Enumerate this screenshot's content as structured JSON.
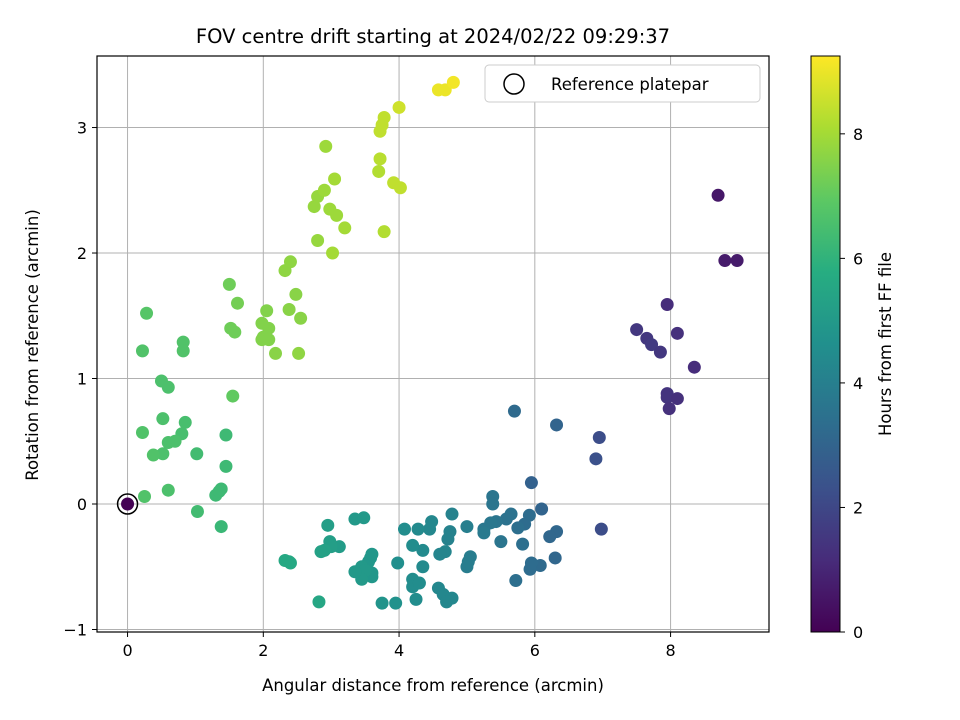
{
  "chart_data": {
    "type": "scatter",
    "title": "FOV centre drift starting at 2024/02/22 09:29:37",
    "xlabel": "Angular distance from reference (arcmin)",
    "ylabel": "Rotation from reference (arcmin)",
    "xlim": [
      -0.45,
      9.45
    ],
    "ylim": [
      -1.02,
      3.57
    ],
    "xticks": [
      0,
      2,
      4,
      6,
      8
    ],
    "yticks": [
      -1,
      0,
      1,
      2,
      3
    ],
    "grid": true,
    "colormap": "viridis",
    "colorbar": {
      "label": "Hours from first FF file",
      "min": 0,
      "max": 9.25,
      "ticks": [
        0,
        2,
        4,
        6,
        8
      ]
    },
    "legend": {
      "position": "top-right",
      "entries": [
        "Reference platepar"
      ]
    },
    "reference_point": {
      "x": 0,
      "y": 0
    },
    "points": [
      {
        "x": 8.7,
        "y": 2.46,
        "h": 0.6
      },
      {
        "x": 8.8,
        "y": 1.94,
        "h": 0.7
      },
      {
        "x": 8.98,
        "y": 1.94,
        "h": 0.7
      },
      {
        "x": 7.95,
        "y": 1.59,
        "h": 1.2
      },
      {
        "x": 8.1,
        "y": 1.36,
        "h": 1.3
      },
      {
        "x": 7.5,
        "y": 1.39,
        "h": 1.5
      },
      {
        "x": 7.65,
        "y": 1.32,
        "h": 1.5
      },
      {
        "x": 7.72,
        "y": 1.27,
        "h": 1.6
      },
      {
        "x": 7.85,
        "y": 1.21,
        "h": 1.5
      },
      {
        "x": 8.35,
        "y": 1.09,
        "h": 1.2
      },
      {
        "x": 7.95,
        "y": 0.88,
        "h": 1.4
      },
      {
        "x": 7.95,
        "y": 0.85,
        "h": 1.4
      },
      {
        "x": 8.1,
        "y": 0.84,
        "h": 1.3
      },
      {
        "x": 7.98,
        "y": 0.76,
        "h": 1.3
      },
      {
        "x": 6.95,
        "y": 0.53,
        "h": 2.2
      },
      {
        "x": 6.9,
        "y": 0.36,
        "h": 2.3
      },
      {
        "x": 6.98,
        "y": -0.2,
        "h": 2.2
      },
      {
        "x": 6.32,
        "y": 0.63,
        "h": 3.0
      },
      {
        "x": 5.7,
        "y": 0.74,
        "h": 3.2
      },
      {
        "x": 5.95,
        "y": 0.17,
        "h": 2.9
      },
      {
        "x": 6.1,
        "y": -0.04,
        "h": 3.0
      },
      {
        "x": 6.32,
        "y": -0.22,
        "h": 3.1
      },
      {
        "x": 6.22,
        "y": -0.26,
        "h": 3.1
      },
      {
        "x": 6.3,
        "y": -0.43,
        "h": 3.1
      },
      {
        "x": 6.08,
        "y": -0.49,
        "h": 3.2
      },
      {
        "x": 5.95,
        "y": -0.47,
        "h": 3.3
      },
      {
        "x": 5.93,
        "y": -0.52,
        "h": 3.3
      },
      {
        "x": 5.72,
        "y": -0.61,
        "h": 3.4
      },
      {
        "x": 5.92,
        "y": -0.09,
        "h": 3.3
      },
      {
        "x": 5.85,
        "y": -0.16,
        "h": 3.3
      },
      {
        "x": 5.75,
        "y": -0.19,
        "h": 3.4
      },
      {
        "x": 5.82,
        "y": -0.32,
        "h": 3.4
      },
      {
        "x": 5.65,
        "y": -0.08,
        "h": 3.5
      },
      {
        "x": 5.58,
        "y": -0.12,
        "h": 3.5
      },
      {
        "x": 5.5,
        "y": -0.3,
        "h": 3.6
      },
      {
        "x": 5.38,
        "y": 0.06,
        "h": 3.6
      },
      {
        "x": 5.38,
        "y": 0.0,
        "h": 3.6
      },
      {
        "x": 5.43,
        "y": -0.14,
        "h": 3.6
      },
      {
        "x": 5.35,
        "y": -0.15,
        "h": 3.7
      },
      {
        "x": 5.25,
        "y": -0.2,
        "h": 3.7
      },
      {
        "x": 5.25,
        "y": -0.23,
        "h": 3.8
      },
      {
        "x": 5.05,
        "y": -0.42,
        "h": 3.9
      },
      {
        "x": 5.0,
        "y": -0.5,
        "h": 3.9
      },
      {
        "x": 5.02,
        "y": -0.46,
        "h": 3.9
      },
      {
        "x": 5.0,
        "y": -0.18,
        "h": 4.0
      },
      {
        "x": 4.78,
        "y": -0.08,
        "h": 4.1
      },
      {
        "x": 4.75,
        "y": -0.22,
        "h": 4.1
      },
      {
        "x": 4.72,
        "y": -0.28,
        "h": 4.1
      },
      {
        "x": 4.68,
        "y": -0.38,
        "h": 4.2
      },
      {
        "x": 4.6,
        "y": -0.4,
        "h": 4.2
      },
      {
        "x": 4.48,
        "y": -0.14,
        "h": 4.3
      },
      {
        "x": 4.45,
        "y": -0.2,
        "h": 4.3
      },
      {
        "x": 4.28,
        "y": -0.2,
        "h": 4.4
      },
      {
        "x": 4.35,
        "y": -0.37,
        "h": 4.4
      },
      {
        "x": 4.35,
        "y": -0.5,
        "h": 4.4
      },
      {
        "x": 4.2,
        "y": -0.33,
        "h": 4.5
      },
      {
        "x": 4.08,
        "y": -0.2,
        "h": 4.5
      },
      {
        "x": 3.98,
        "y": -0.47,
        "h": 4.6
      },
      {
        "x": 4.2,
        "y": -0.6,
        "h": 4.5
      },
      {
        "x": 4.2,
        "y": -0.66,
        "h": 4.5
      },
      {
        "x": 4.3,
        "y": -0.63,
        "h": 4.5
      },
      {
        "x": 4.25,
        "y": -0.76,
        "h": 4.5
      },
      {
        "x": 4.58,
        "y": -0.67,
        "h": 4.3
      },
      {
        "x": 4.65,
        "y": -0.72,
        "h": 4.3
      },
      {
        "x": 4.7,
        "y": -0.78,
        "h": 4.3
      },
      {
        "x": 4.78,
        "y": -0.75,
        "h": 4.3
      },
      {
        "x": 3.95,
        "y": -0.79,
        "h": 4.7
      },
      {
        "x": 3.75,
        "y": -0.79,
        "h": 4.8
      },
      {
        "x": 3.55,
        "y": -0.46,
        "h": 4.9
      },
      {
        "x": 3.58,
        "y": -0.43,
        "h": 4.9
      },
      {
        "x": 3.6,
        "y": -0.4,
        "h": 4.9
      },
      {
        "x": 3.6,
        "y": -0.55,
        "h": 4.9
      },
      {
        "x": 3.6,
        "y": -0.58,
        "h": 4.9
      },
      {
        "x": 3.45,
        "y": -0.5,
        "h": 5.0
      },
      {
        "x": 3.5,
        "y": -0.53,
        "h": 5.0
      },
      {
        "x": 3.45,
        "y": -0.6,
        "h": 5.0
      },
      {
        "x": 3.35,
        "y": -0.54,
        "h": 5.0
      },
      {
        "x": 3.35,
        "y": -0.12,
        "h": 5.0
      },
      {
        "x": 3.48,
        "y": -0.11,
        "h": 5.0
      },
      {
        "x": 3.12,
        "y": -0.34,
        "h": 5.1
      },
      {
        "x": 2.98,
        "y": -0.3,
        "h": 5.2
      },
      {
        "x": 3.0,
        "y": -0.34,
        "h": 5.2
      },
      {
        "x": 2.9,
        "y": -0.37,
        "h": 5.3
      },
      {
        "x": 2.85,
        "y": -0.38,
        "h": 5.3
      },
      {
        "x": 2.95,
        "y": -0.17,
        "h": 5.2
      },
      {
        "x": 2.32,
        "y": -0.45,
        "h": 5.6
      },
      {
        "x": 2.38,
        "y": -0.46,
        "h": 5.6
      },
      {
        "x": 2.4,
        "y": -0.47,
        "h": 5.6
      },
      {
        "x": 2.82,
        "y": -0.78,
        "h": 5.5
      },
      {
        "x": 1.38,
        "y": -0.18,
        "h": 6.2
      },
      {
        "x": 1.3,
        "y": 0.07,
        "h": 6.3
      },
      {
        "x": 1.35,
        "y": 0.1,
        "h": 6.3
      },
      {
        "x": 1.38,
        "y": 0.12,
        "h": 6.3
      },
      {
        "x": 1.45,
        "y": 0.3,
        "h": 6.3
      },
      {
        "x": 1.45,
        "y": 0.55,
        "h": 6.3
      },
      {
        "x": 1.02,
        "y": 0.4,
        "h": 6.4
      },
      {
        "x": 1.03,
        "y": -0.06,
        "h": 6.4
      },
      {
        "x": 0.8,
        "y": 0.56,
        "h": 6.5
      },
      {
        "x": 0.85,
        "y": 0.65,
        "h": 6.5
      },
      {
        "x": 0.7,
        "y": 0.5,
        "h": 6.6
      },
      {
        "x": 0.6,
        "y": 0.49,
        "h": 6.6
      },
      {
        "x": 0.52,
        "y": 0.68,
        "h": 6.6
      },
      {
        "x": 0.52,
        "y": 0.4,
        "h": 6.6
      },
      {
        "x": 0.38,
        "y": 0.39,
        "h": 6.7
      },
      {
        "x": 0.6,
        "y": 0.11,
        "h": 6.6
      },
      {
        "x": 0.22,
        "y": 0.57,
        "h": 6.7
      },
      {
        "x": 0.25,
        "y": 0.06,
        "h": 6.7
      },
      {
        "x": 0.5,
        "y": 0.98,
        "h": 6.6
      },
      {
        "x": 0.6,
        "y": 0.93,
        "h": 6.6
      },
      {
        "x": 0.82,
        "y": 1.29,
        "h": 6.7
      },
      {
        "x": 0.82,
        "y": 1.22,
        "h": 6.7
      },
      {
        "x": 0.22,
        "y": 1.22,
        "h": 6.7
      },
      {
        "x": 0.28,
        "y": 1.52,
        "h": 6.8
      },
      {
        "x": 1.55,
        "y": 0.86,
        "h": 7.0
      },
      {
        "x": 1.5,
        "y": 1.75,
        "h": 7.2
      },
      {
        "x": 1.62,
        "y": 1.6,
        "h": 7.3
      },
      {
        "x": 1.52,
        "y": 1.4,
        "h": 7.2
      },
      {
        "x": 1.58,
        "y": 1.37,
        "h": 7.2
      },
      {
        "x": 1.98,
        "y": 1.44,
        "h": 7.5
      },
      {
        "x": 2.05,
        "y": 1.54,
        "h": 7.5
      },
      {
        "x": 2.08,
        "y": 1.4,
        "h": 7.5
      },
      {
        "x": 2.0,
        "y": 1.33,
        "h": 7.5
      },
      {
        "x": 1.98,
        "y": 1.31,
        "h": 7.5
      },
      {
        "x": 2.08,
        "y": 1.31,
        "h": 7.5
      },
      {
        "x": 2.18,
        "y": 1.2,
        "h": 7.6
      },
      {
        "x": 2.38,
        "y": 1.55,
        "h": 7.6
      },
      {
        "x": 2.48,
        "y": 1.67,
        "h": 7.6
      },
      {
        "x": 2.55,
        "y": 1.48,
        "h": 7.6
      },
      {
        "x": 2.52,
        "y": 1.2,
        "h": 7.7
      },
      {
        "x": 2.32,
        "y": 1.86,
        "h": 7.7
      },
      {
        "x": 2.4,
        "y": 1.93,
        "h": 7.7
      },
      {
        "x": 2.8,
        "y": 2.1,
        "h": 7.8
      },
      {
        "x": 2.75,
        "y": 2.37,
        "h": 7.8
      },
      {
        "x": 2.8,
        "y": 2.45,
        "h": 7.8
      },
      {
        "x": 2.9,
        "y": 2.5,
        "h": 7.9
      },
      {
        "x": 2.98,
        "y": 2.35,
        "h": 7.9
      },
      {
        "x": 3.08,
        "y": 2.3,
        "h": 7.9
      },
      {
        "x": 3.2,
        "y": 2.2,
        "h": 8.0
      },
      {
        "x": 3.02,
        "y": 2.0,
        "h": 8.0
      },
      {
        "x": 3.05,
        "y": 2.59,
        "h": 8.0
      },
      {
        "x": 2.92,
        "y": 2.85,
        "h": 7.9
      },
      {
        "x": 3.78,
        "y": 2.17,
        "h": 8.2
      },
      {
        "x": 3.7,
        "y": 2.65,
        "h": 8.2
      },
      {
        "x": 3.72,
        "y": 2.75,
        "h": 8.3
      },
      {
        "x": 3.92,
        "y": 2.56,
        "h": 8.4
      },
      {
        "x": 4.02,
        "y": 2.52,
        "h": 8.4
      },
      {
        "x": 3.72,
        "y": 2.97,
        "h": 8.4
      },
      {
        "x": 3.75,
        "y": 3.02,
        "h": 8.4
      },
      {
        "x": 3.78,
        "y": 3.08,
        "h": 8.4
      },
      {
        "x": 4.0,
        "y": 3.16,
        "h": 8.6
      },
      {
        "x": 4.58,
        "y": 3.3,
        "h": 9.0
      },
      {
        "x": 4.68,
        "y": 3.3,
        "h": 9.0
      },
      {
        "x": 4.8,
        "y": 3.36,
        "h": 9.1
      }
    ]
  }
}
